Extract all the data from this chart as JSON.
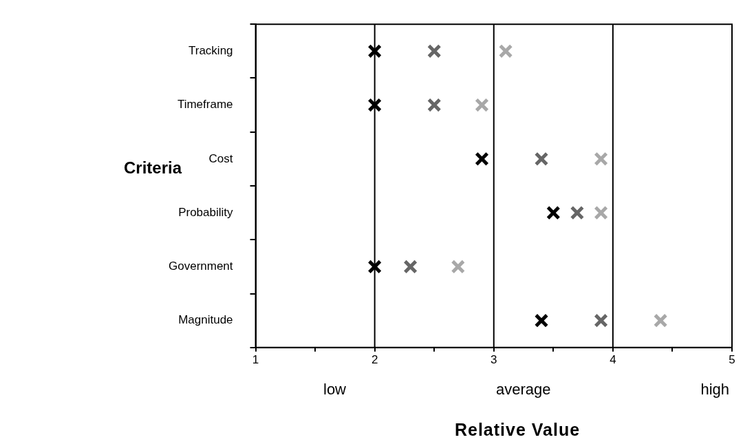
{
  "chart_data": {
    "type": "scatter",
    "orientation": "horizontal",
    "xlabel": "Relative Value",
    "ylabel": "Criteria",
    "categories": [
      "Tracking",
      "Timeframe",
      "Cost",
      "Probability",
      "Government",
      "Magnitude"
    ],
    "series": [
      {
        "color": "#000000",
        "values": [
          2.0,
          2.0,
          2.9,
          3.5,
          2.0,
          3.4
        ]
      },
      {
        "color": "#666666",
        "values": [
          2.5,
          2.5,
          3.4,
          3.7,
          2.3,
          3.9
        ]
      },
      {
        "color": "#a8a8a8",
        "values": [
          3.1,
          2.9,
          3.9,
          3.9,
          2.7,
          4.4
        ]
      }
    ],
    "xlim": [
      1,
      5
    ],
    "xticks": [
      1,
      {
        "value": 1.5,
        "label": null
      },
      2,
      {
        "value": 2.5,
        "label": null
      },
      3,
      {
        "value": 3.5,
        "label": null
      },
      4,
      {
        "value": 4.5,
        "label": null
      },
      5
    ],
    "ref_lines": [
      {
        "axis": "x",
        "value": 2,
        "color": "#000000"
      },
      {
        "axis": "x",
        "value": 3,
        "color": "#000000"
      },
      {
        "axis": "x",
        "value": 4,
        "color": "#000000"
      }
    ],
    "annotations": [
      "low",
      "average",
      "high"
    ],
    "marker": "cross",
    "grid": false,
    "legend": false
  }
}
